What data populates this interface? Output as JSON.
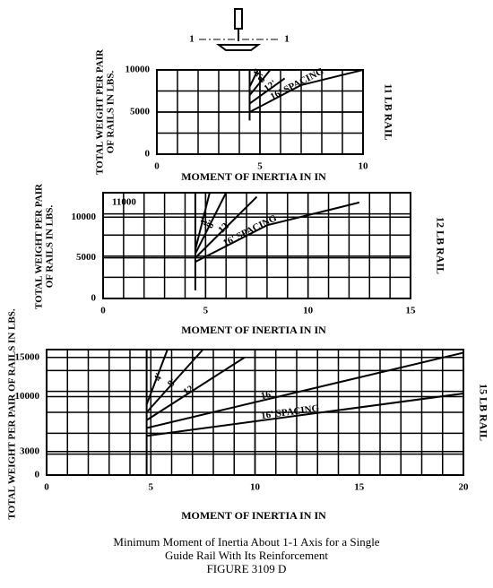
{
  "diagram": {
    "labels": [
      "1",
      "1"
    ]
  },
  "chart_data": [
    {
      "type": "line",
      "y_label": [
        "TOTAL WEIGHT PER PAIR",
        "OF RAILS IN LBS."
      ],
      "x_label": "MOMENT OF INERTIA IN IN",
      "right_label": "11 LB RAIL",
      "xlim": [
        0,
        10
      ],
      "ylim": [
        0,
        10000
      ],
      "xticks": [
        0,
        5,
        10
      ],
      "yticks": [
        0,
        5000,
        10000
      ],
      "grid": true,
      "series": [
        {
          "color": "#000",
          "x": [
            4.5,
            4.5
          ],
          "values": [
            4000,
            10000
          ]
        },
        {
          "name": "4'",
          "color": "#000",
          "x": [
            4.5,
            4.9
          ],
          "values": [
            8000,
            10000
          ]
        },
        {
          "name": "8'",
          "color": "#000",
          "x": [
            4.5,
            5.5
          ],
          "values": [
            7000,
            10000
          ]
        },
        {
          "name": "12'",
          "color": "#000",
          "x": [
            4.5,
            6.2
          ],
          "values": [
            6000,
            9000
          ]
        },
        {
          "name": "16' SPACING",
          "color": "#000",
          "x": [
            4.5,
            7,
            10
          ],
          "values": [
            5000,
            8200,
            10000
          ]
        }
      ]
    },
    {
      "type": "line",
      "y_label": [
        "TOTAL WEIGHT PER PAIR",
        "OF RAILS IN LBS."
      ],
      "x_label": "MOMENT OF INERTIA IN IN",
      "right_label": "12 LB RAIL",
      "xlim": [
        0,
        15
      ],
      "ylim": [
        0,
        13000
      ],
      "xticks": [
        0,
        5,
        10,
        15
      ],
      "yticks": [
        0,
        5000,
        10000
      ],
      "grid": true,
      "annotation": "11000",
      "series": [
        {
          "color": "#000",
          "x": [
            4.5,
            4.5
          ],
          "values": [
            1000,
            13000
          ]
        },
        {
          "name": "4'",
          "color": "#000",
          "x": [
            4.5,
            5.2
          ],
          "values": [
            6000,
            13000
          ]
        },
        {
          "name": "8'",
          "color": "#000",
          "x": [
            4.5,
            6
          ],
          "values": [
            5500,
            13000
          ]
        },
        {
          "name": "12'",
          "color": "#000",
          "x": [
            4.5,
            7.5
          ],
          "values": [
            5000,
            12500
          ]
        },
        {
          "name": "16' SPACING",
          "color": "#000",
          "x": [
            4.5,
            8,
            12.5
          ],
          "values": [
            4500,
            9000,
            11800
          ]
        }
      ]
    },
    {
      "type": "line",
      "y_label": [
        "TOTAL WEIGHT PER PAIR OF RAILS IN LBS."
      ],
      "x_label": "MOMENT OF INERTIA IN IN",
      "right_label": "15 LB RAIL",
      "xlim": [
        0,
        20
      ],
      "ylim": [
        0,
        16000
      ],
      "xticks": [
        0,
        5,
        10,
        15,
        20
      ],
      "yticks": [
        0,
        3000,
        10000,
        15000
      ],
      "grid": true,
      "series": [
        {
          "color": "#000",
          "x": [
            4.8,
            4.8
          ],
          "values": [
            0,
            16000
          ]
        },
        {
          "name": "4'",
          "color": "#000",
          "x": [
            4.8,
            5.8
          ],
          "values": [
            9000,
            16000
          ]
        },
        {
          "name": "8'",
          "color": "#000",
          "x": [
            4.8,
            7.5
          ],
          "values": [
            8000,
            16000
          ]
        },
        {
          "name": "12'",
          "color": "#000",
          "x": [
            4.8,
            9.5
          ],
          "values": [
            7000,
            15000
          ]
        },
        {
          "name": "16'",
          "color": "#000",
          "x": [
            4.8,
            20
          ],
          "values": [
            6000,
            15600
          ]
        },
        {
          "name": "16' SPACING",
          "color": "#000",
          "x": [
            4.8,
            20
          ],
          "values": [
            5000,
            10400
          ]
        }
      ]
    }
  ],
  "caption": [
    "Minimum Moment of Inertia About 1-1 Axis for a Single",
    "Guide Rail With Its Reinforcement",
    "FIGURE 3109 D"
  ]
}
